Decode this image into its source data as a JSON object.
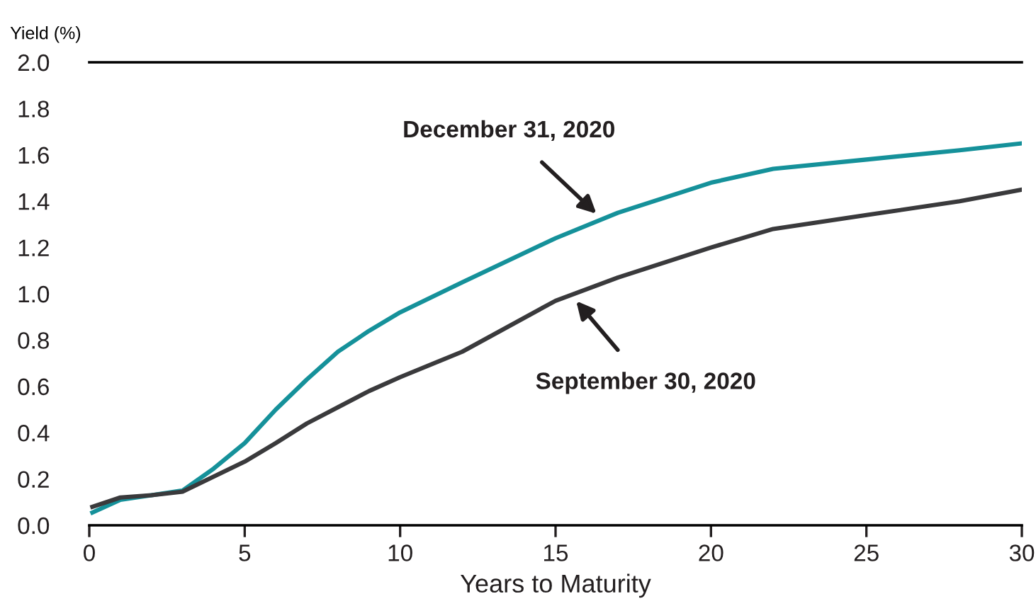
{
  "chart_data": {
    "type": "line",
    "xlabel": "Years to Maturity",
    "ylabel": "Yield (%)",
    "x": [
      0.1,
      1,
      2,
      3,
      4,
      5,
      6,
      7,
      8,
      9,
      10,
      12,
      15,
      17,
      20,
      22,
      25,
      28,
      30
    ],
    "series": [
      {
        "name": "December 31, 2020",
        "color": "#15919a",
        "values": [
          0.055,
          0.11,
          0.13,
          0.15,
          0.245,
          0.355,
          0.5,
          0.63,
          0.75,
          0.84,
          0.92,
          1.05,
          1.24,
          1.35,
          1.48,
          1.54,
          1.58,
          1.62,
          1.65
        ]
      },
      {
        "name": "September 30, 2020",
        "color": "#3a3a3c",
        "values": [
          0.08,
          0.12,
          0.13,
          0.145,
          0.21,
          0.275,
          0.355,
          0.44,
          0.51,
          0.58,
          0.64,
          0.75,
          0.97,
          1.07,
          1.2,
          1.28,
          1.34,
          1.4,
          1.45
        ]
      }
    ],
    "xlim": [
      0,
      30
    ],
    "xticks": [
      0,
      5,
      10,
      15,
      20,
      25,
      30
    ],
    "ylim": [
      0,
      2.0
    ],
    "yticks": [
      {
        "value": 0,
        "label": "0.0"
      },
      {
        "value": 0.2,
        "label": "0.2"
      },
      {
        "value": 0.4,
        "label": "0.4"
      },
      {
        "value": 0.6,
        "label": "0.6"
      },
      {
        "value": 0.8,
        "label": "0.8"
      },
      {
        "value": 1.0,
        "label": "1.0"
      },
      {
        "value": 1.2,
        "label": "1.2"
      },
      {
        "value": 1.4,
        "label": "1.4"
      },
      {
        "value": 1.6,
        "label": "1.6"
      },
      {
        "value": 1.8,
        "label": "1.8"
      },
      {
        "value": 2.0,
        "label": "2.0"
      }
    ],
    "grid": false,
    "legend": false,
    "line_style": "solid",
    "marker": "none"
  }
}
